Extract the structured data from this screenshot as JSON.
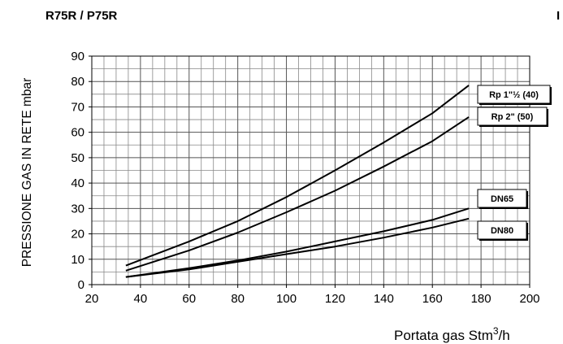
{
  "header": {
    "title": "R75R / P75R",
    "corner": "I"
  },
  "chart_data": {
    "type": "line",
    "xlabel": "Portata gas Stm",
    "xlabel_sup": "3",
    "xlabel_suffix": "/h",
    "ylabel": "PRESSIONE GAS IN RETE mbar",
    "xlim": [
      20,
      200
    ],
    "ylim": [
      0,
      90
    ],
    "x_ticks": [
      20,
      40,
      60,
      80,
      100,
      120,
      140,
      160,
      180,
      200
    ],
    "y_ticks": [
      0,
      10,
      20,
      30,
      40,
      50,
      60,
      70,
      80,
      90
    ],
    "x_minor_step": 5,
    "y_minor_step": 5,
    "grid": true,
    "series": [
      {
        "name": "Rp 1\"½ (40)",
        "x": [
          34,
          60,
          80,
          100,
          120,
          140,
          160,
          175
        ],
        "y": [
          7.5,
          17,
          25,
          34.5,
          45,
          56,
          67.5,
          78.5
        ]
      },
      {
        "name": "Rp 2\" (50)",
        "x": [
          34,
          60,
          80,
          100,
          120,
          140,
          160,
          175
        ],
        "y": [
          5.5,
          13.5,
          20.5,
          28.5,
          37,
          46.5,
          56.5,
          66
        ]
      },
      {
        "name": "DN65",
        "x": [
          34,
          60,
          80,
          100,
          120,
          140,
          160,
          175
        ],
        "y": [
          3,
          6.5,
          9.5,
          13,
          17,
          21,
          25.5,
          30
        ]
      },
      {
        "name": "DN80",
        "x": [
          34,
          60,
          80,
          100,
          120,
          140,
          160,
          175
        ],
        "y": [
          3,
          6,
          9,
          12,
          15,
          18.5,
          22.5,
          26
        ]
      }
    ]
  }
}
